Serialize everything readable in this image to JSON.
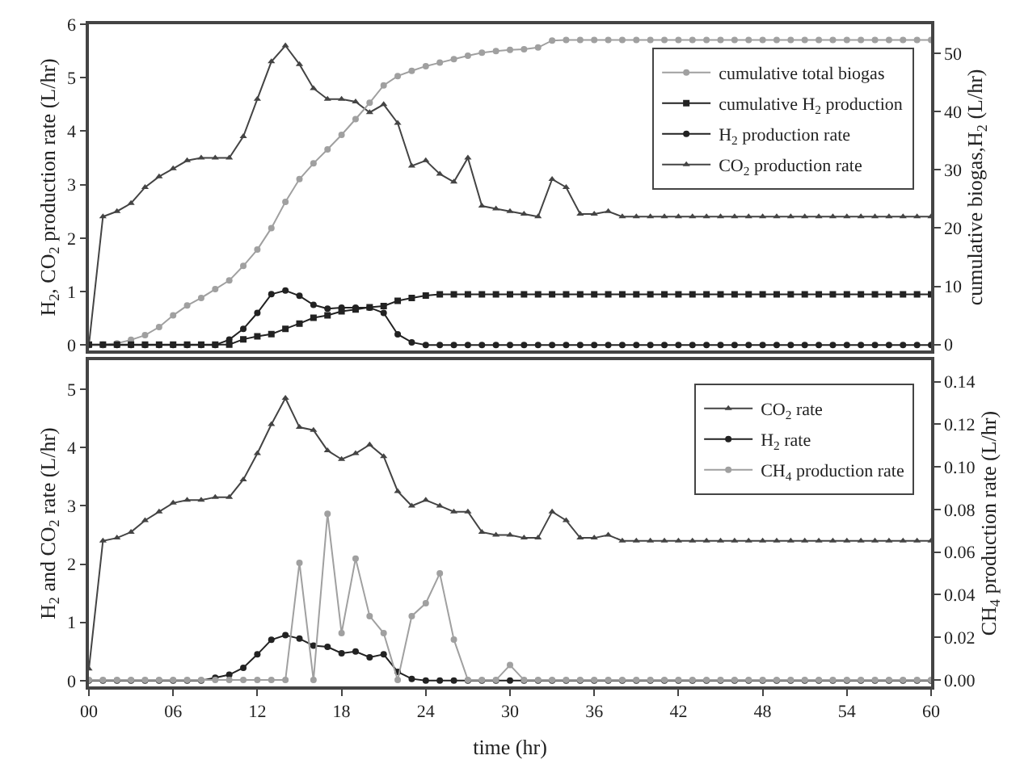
{
  "chart_data": [
    {
      "type": "line",
      "ylabel": "H$_{2}$, CO$_{2}$ production rate (L/hr)",
      "y2label": "cumulative biogas,H$_{2}$ (L/hr)",
      "x": [
        0,
        1,
        2,
        3,
        4,
        5,
        6,
        7,
        8,
        9,
        10,
        11,
        12,
        13,
        14,
        15,
        16,
        17,
        18,
        19,
        20,
        21,
        22,
        23,
        24,
        25,
        26,
        27,
        28,
        29,
        30,
        31,
        32,
        33,
        34,
        35,
        36,
        37,
        38,
        39,
        40,
        41,
        42,
        43,
        44,
        45,
        46,
        47,
        48,
        49,
        50,
        51,
        52,
        53,
        54,
        55,
        56,
        57,
        58,
        59,
        60
      ],
      "xlim": [
        0,
        60
      ],
      "ylim": [
        -0.1,
        6
      ],
      "yticks": [
        0,
        1,
        2,
        3,
        4,
        5,
        6
      ],
      "y2lim": [
        -1,
        55
      ],
      "y2ticks": [
        0,
        10,
        20,
        30,
        40,
        50
      ],
      "tick_labels": "y",
      "legend": "top right",
      "series": [
        {
          "name": "cumulative total biogas",
          "color": "#a0a0a0",
          "marker": "circle",
          "axis": "y2",
          "values": [
            0,
            0,
            0.2,
            0.8,
            1.6,
            3,
            5,
            6.7,
            8,
            9.5,
            11,
            13.5,
            16.3,
            20,
            24.5,
            28.4,
            31.1,
            33.5,
            36,
            38.7,
            41.5,
            44.5,
            46.1,
            47,
            47.8,
            48.4,
            49,
            49.6,
            50.1,
            50.4,
            50.6,
            50.7,
            51,
            52.2,
            52.3,
            52.3,
            52.3,
            52.3,
            52.3,
            52.3,
            52.3,
            52.3,
            52.3,
            52.3,
            52.3,
            52.3,
            52.3,
            52.3,
            52.3,
            52.3,
            52.3,
            52.3,
            52.3,
            52.3,
            52.3,
            52.3,
            52.3,
            52.3,
            52.3,
            52.3,
            52.3
          ]
        },
        {
          "name": "cumulative H$_{2}$ production",
          "color": "#222222",
          "marker": "square",
          "axis": "y2",
          "values": [
            0,
            0,
            0,
            0,
            0,
            0,
            0,
            0,
            0,
            0,
            0,
            0.9,
            1.4,
            1.8,
            2.7,
            3.6,
            4.6,
            5.0,
            5.7,
            6.0,
            6.4,
            6.6,
            7.5,
            8.0,
            8.4,
            8.6,
            8.6,
            8.6,
            8.6,
            8.6,
            8.6,
            8.6,
            8.6,
            8.6,
            8.6,
            8.6,
            8.6,
            8.6,
            8.6,
            8.6,
            8.6,
            8.6,
            8.6,
            8.6,
            8.6,
            8.6,
            8.6,
            8.6,
            8.6,
            8.6,
            8.6,
            8.6,
            8.6,
            8.6,
            8.6,
            8.6,
            8.6,
            8.6,
            8.6,
            8.6,
            8.6
          ]
        },
        {
          "name": "H$_{2}$ production rate",
          "color": "#222222",
          "marker": "circle",
          "axis": "y",
          "values": [
            0,
            0,
            0,
            0,
            0,
            0,
            0,
            0,
            0,
            0,
            0.1,
            0.3,
            0.6,
            0.95,
            1.02,
            0.92,
            0.75,
            0.68,
            0.7,
            0.7,
            0.7,
            0.6,
            0.2,
            0.05,
            0,
            0,
            0,
            0,
            0,
            0,
            0,
            0,
            0,
            0,
            0,
            0,
            0,
            0,
            0,
            0,
            0,
            0,
            0,
            0,
            0,
            0,
            0,
            0,
            0,
            0,
            0,
            0,
            0,
            0,
            0,
            0,
            0,
            0,
            0,
            0,
            0
          ]
        },
        {
          "name": "CO$_{2}$ production rate",
          "color": "#444444",
          "marker": "triangle",
          "axis": "y",
          "values": [
            0,
            2.4,
            2.5,
            2.65,
            2.95,
            3.15,
            3.3,
            3.45,
            3.5,
            3.5,
            3.5,
            3.9,
            4.6,
            5.3,
            5.6,
            5.25,
            4.8,
            4.6,
            4.6,
            4.55,
            4.35,
            4.5,
            4.15,
            3.35,
            3.45,
            3.2,
            3.05,
            3.5,
            2.6,
            2.55,
            2.5,
            2.45,
            2.4,
            3.1,
            2.95,
            2.45,
            2.45,
            2.5,
            2.4,
            2.4,
            2.4,
            2.4,
            2.4,
            2.4,
            2.4,
            2.4,
            2.4,
            2.4,
            2.4,
            2.4,
            2.4,
            2.4,
            2.4,
            2.4,
            2.4,
            2.4,
            2.4,
            2.4,
            2.4,
            2.4,
            2.4
          ]
        }
      ]
    },
    {
      "type": "line",
      "xlabel": "time (hr)",
      "ylabel": "H$_{2}$ and CO$_{2}$ rate (L/hr)",
      "y2label": "CH$_{4}$ production rate (L/hr)",
      "x": [
        0,
        1,
        2,
        3,
        4,
        5,
        6,
        7,
        8,
        9,
        10,
        11,
        12,
        13,
        14,
        15,
        16,
        17,
        18,
        19,
        20,
        21,
        22,
        23,
        24,
        25,
        26,
        27,
        28,
        29,
        30,
        31,
        32,
        33,
        34,
        35,
        36,
        37,
        38,
        39,
        40,
        41,
        42,
        43,
        44,
        45,
        46,
        47,
        48,
        49,
        50,
        51,
        52,
        53,
        54,
        55,
        56,
        57,
        58,
        59,
        60
      ],
      "xlim": [
        0,
        60
      ],
      "xticks": [
        {
          "value": 0,
          "label": "00"
        },
        {
          "value": 6,
          "label": "06"
        },
        12,
        18,
        24,
        30,
        36,
        42,
        48,
        54,
        60
      ],
      "ylim": [
        -0.1,
        5.5
      ],
      "yticks": [
        0,
        1,
        2,
        3,
        4,
        5
      ],
      "y2lim": [
        -0.003,
        0.15
      ],
      "y2ticks": [
        {
          "value": 0,
          "label": "0.00"
        },
        0.02,
        0.04,
        0.06,
        0.08,
        {
          "value": 0.1,
          "label": "0.10"
        },
        0.12,
        0.14
      ],
      "legend": "top right",
      "series": [
        {
          "name": "CO$_{2}$ rate",
          "color": "#444444",
          "marker": "triangle",
          "axis": "y",
          "values": [
            0.2,
            2.4,
            2.45,
            2.55,
            2.75,
            2.9,
            3.05,
            3.1,
            3.1,
            3.15,
            3.15,
            3.45,
            3.9,
            4.4,
            4.85,
            4.35,
            4.3,
            3.95,
            3.8,
            3.9,
            4.05,
            3.85,
            3.25,
            3.0,
            3.1,
            3.0,
            2.9,
            2.9,
            2.55,
            2.5,
            2.5,
            2.45,
            2.45,
            2.9,
            2.75,
            2.45,
            2.45,
            2.5,
            2.4,
            2.4,
            2.4,
            2.4,
            2.4,
            2.4,
            2.4,
            2.4,
            2.4,
            2.4,
            2.4,
            2.4,
            2.4,
            2.4,
            2.4,
            2.4,
            2.4,
            2.4,
            2.4,
            2.4,
            2.4,
            2.4,
            2.4
          ]
        },
        {
          "name": "H$_{2}$ rate",
          "color": "#222222",
          "marker": "circle",
          "axis": "y",
          "values": [
            0,
            0,
            0,
            0,
            0,
            0,
            0,
            0,
            0,
            0.05,
            0.1,
            0.22,
            0.45,
            0.7,
            0.78,
            0.72,
            0.6,
            0.58,
            0.47,
            0.5,
            0.4,
            0.45,
            0.15,
            0.03,
            0,
            0,
            0,
            0,
            0,
            0,
            0,
            0,
            0,
            0,
            0,
            0,
            0,
            0,
            0,
            0,
            0,
            0,
            0,
            0,
            0,
            0,
            0,
            0,
            0,
            0,
            0,
            0,
            0,
            0,
            0,
            0,
            0,
            0,
            0,
            0,
            0
          ]
        },
        {
          "name": "CH$_{4}$ production rate",
          "color": "#a0a0a0",
          "marker": "circle",
          "axis": "y2",
          "values": [
            0,
            0,
            0,
            0,
            0,
            0,
            0,
            0,
            0,
            0,
            0,
            0,
            0,
            0,
            0,
            0.055,
            0,
            0.078,
            0.022,
            0.057,
            0.03,
            0.022,
            0,
            0.03,
            0.036,
            0.05,
            0.019,
            0,
            0,
            0,
            0.007,
            0,
            0,
            0,
            0,
            0,
            0,
            0,
            0,
            0,
            0,
            0,
            0,
            0,
            0,
            0,
            0,
            0,
            0,
            0,
            0,
            0,
            0,
            0,
            0,
            0,
            0,
            0,
            0,
            0,
            0
          ]
        }
      ]
    }
  ]
}
